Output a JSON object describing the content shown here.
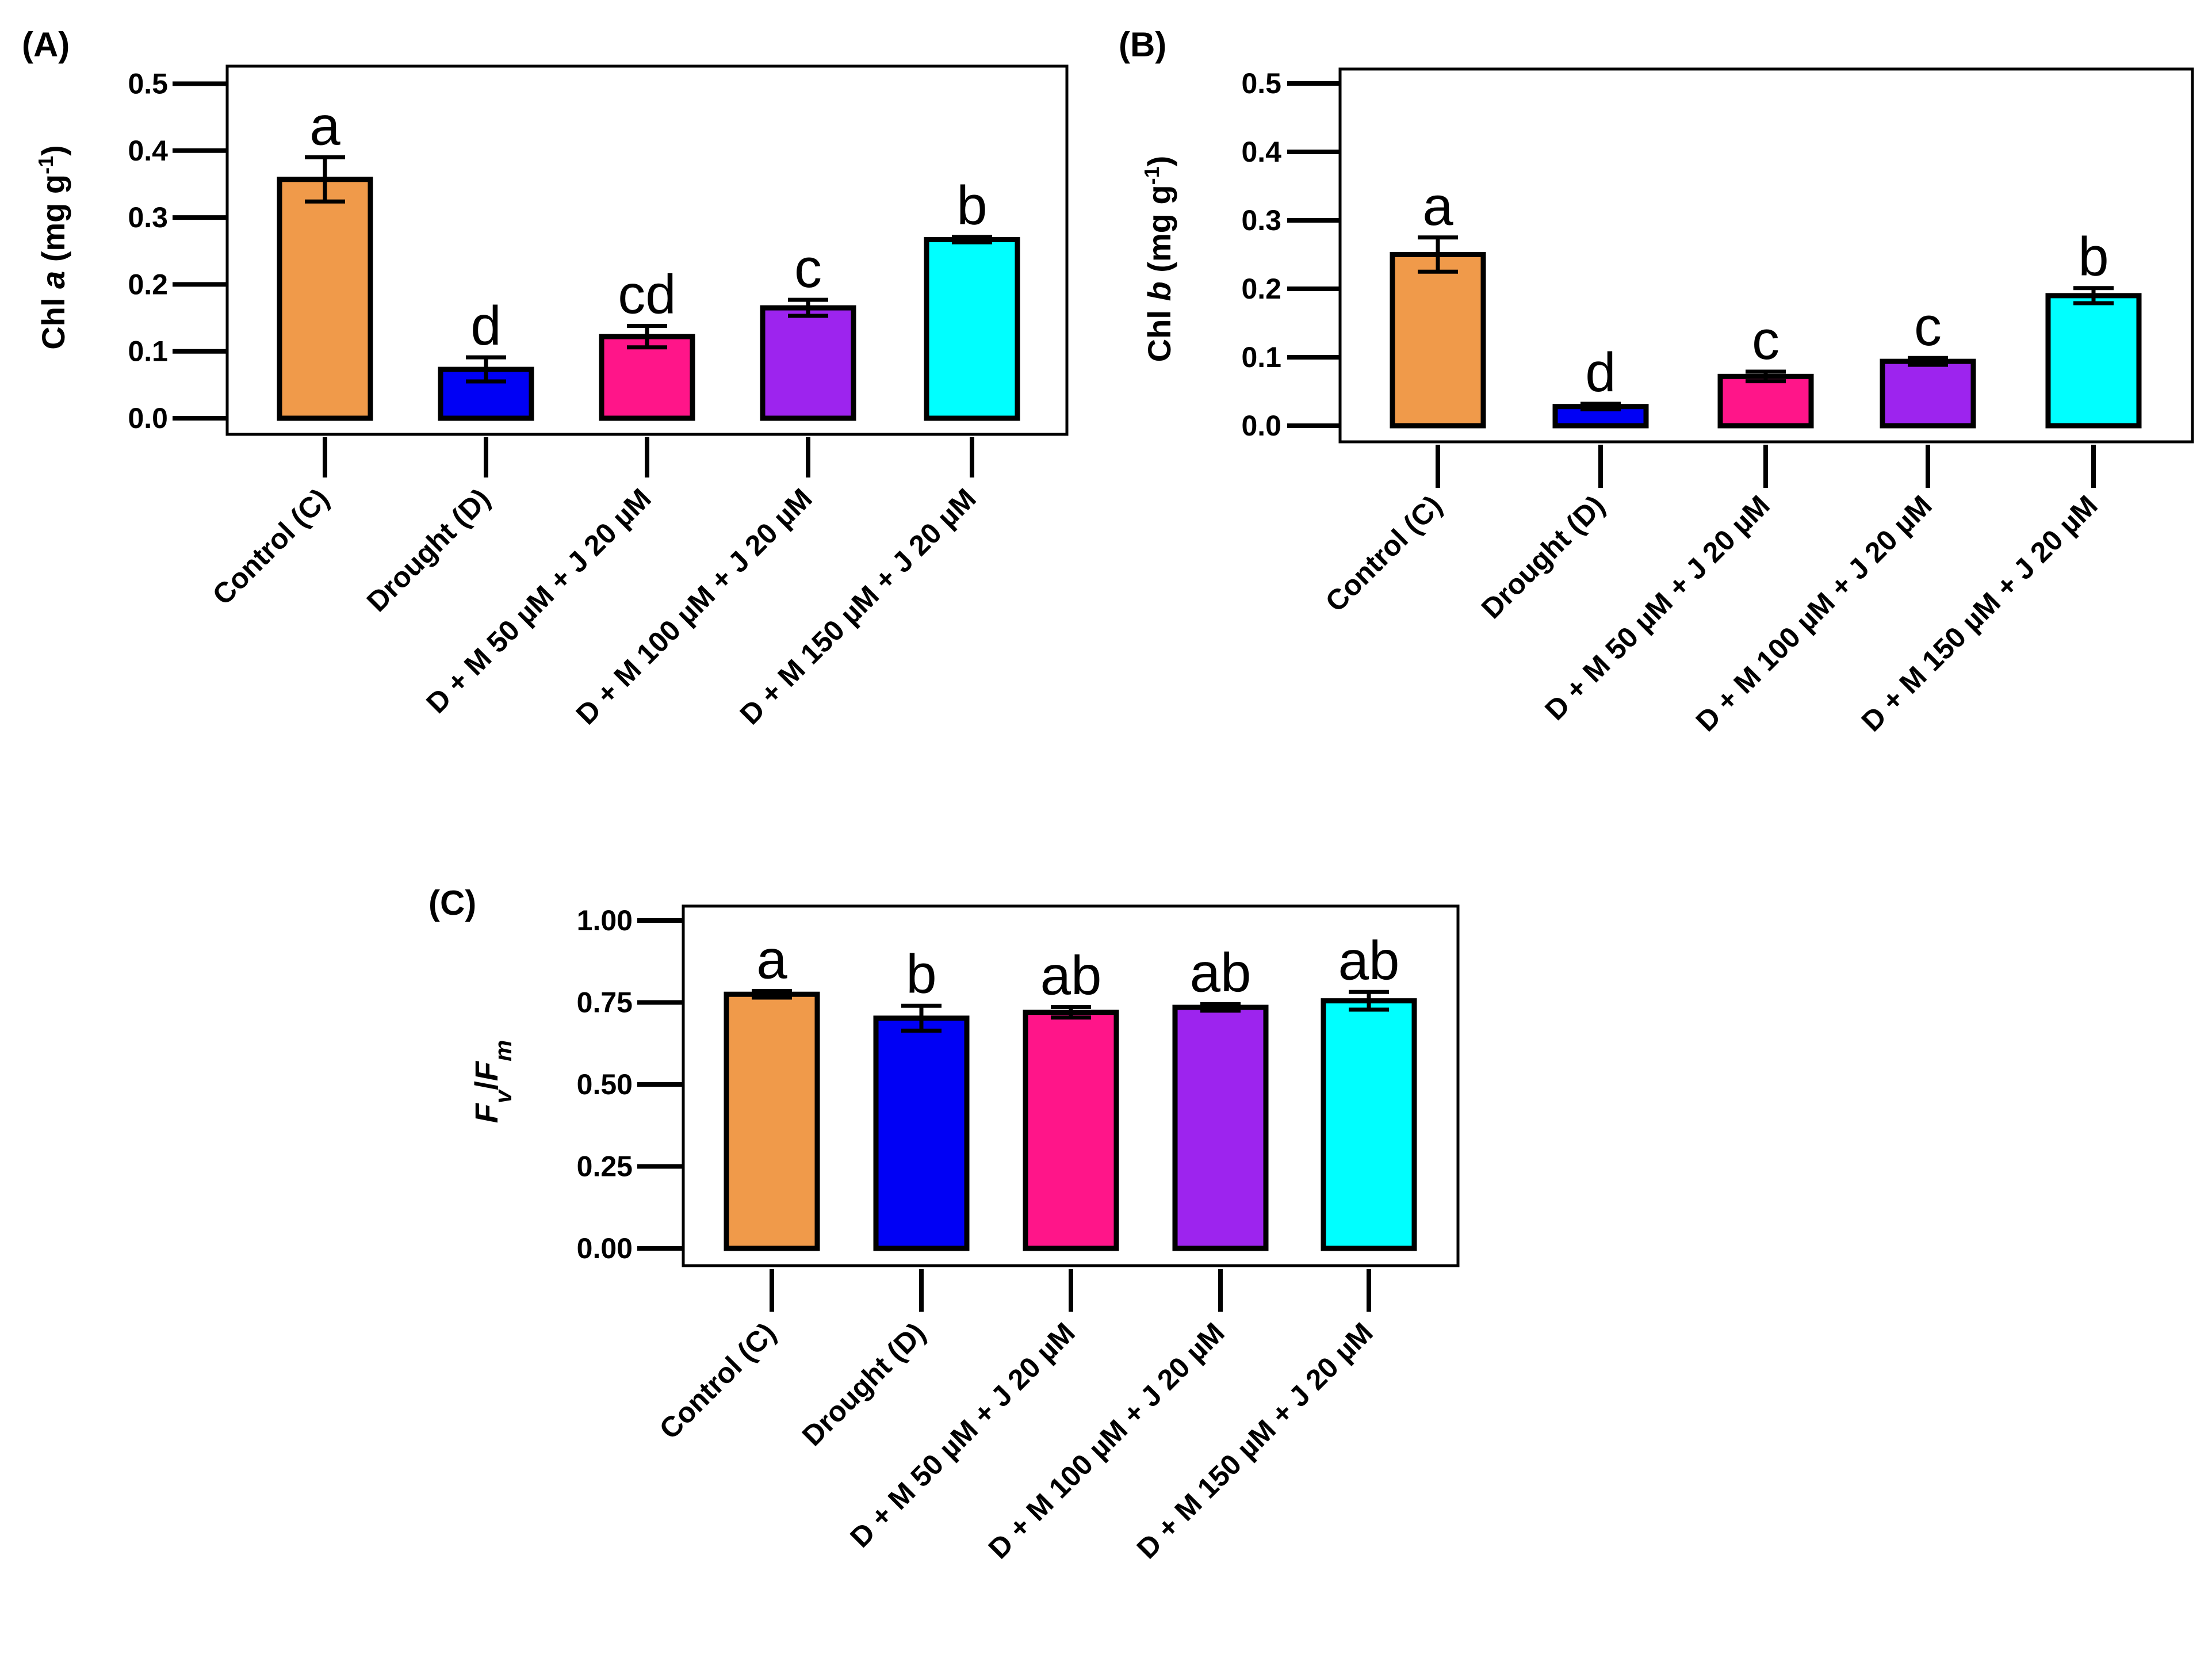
{
  "chart_data": [
    {
      "type": "bar",
      "panel": "(A)",
      "title": "",
      "xlabel": "",
      "ylabel": {
        "prefix": "Chl ",
        "italic": "a",
        "suffix": " (mg g",
        "sup": "-1",
        "close": ")"
      },
      "ylim": [
        0,
        0.55
      ],
      "yticks": [
        "0.0",
        "0.1",
        "0.2",
        "0.3",
        "0.4",
        "0.5"
      ],
      "ytick_values": [
        0,
        0.1,
        0.2,
        0.3,
        0.4,
        0.5
      ],
      "categories": [
        "Control (C)",
        "Drought (D)",
        "D + M 50 µM + J 20 µM",
        "D + M 100 µM + J 20 µM",
        "D + M 150 µM + J 20 µM"
      ],
      "values": [
        0.357,
        0.073,
        0.122,
        0.165,
        0.267
      ],
      "errors": [
        0.033,
        0.018,
        0.016,
        0.012,
        0.004
      ],
      "significance": [
        "a",
        "d",
        "cd",
        "c",
        "b"
      ],
      "colors": [
        "#F09A4A",
        "#0000F5",
        "#FF1589",
        "#9D24EE",
        "#00FFFF"
      ]
    },
    {
      "type": "bar",
      "panel": "(B)",
      "title": "",
      "xlabel": "",
      "ylabel": {
        "prefix": "Chl ",
        "italic": "b",
        "suffix": " (mg g",
        "sup": "-1",
        "close": ")"
      },
      "ylim": [
        0,
        0.53
      ],
      "yticks": [
        "0.0",
        "0.1",
        "0.2",
        "0.3",
        "0.4",
        "0.5"
      ],
      "ytick_values": [
        0,
        0.1,
        0.2,
        0.3,
        0.4,
        0.5
      ],
      "categories": [
        "Control (C)",
        "Drought (D)",
        "D + M 50 µM + J 20 µM",
        "D + M 100 µM + J 20 µM",
        "D + M 150 µM + J 20 µM"
      ],
      "values": [
        0.25,
        0.028,
        0.072,
        0.094,
        0.19
      ],
      "errors": [
        0.025,
        0.004,
        0.007,
        0.005,
        0.011
      ],
      "significance": [
        "a",
        "d",
        "c",
        "c",
        "b"
      ],
      "colors": [
        "#F09A4A",
        "#0000F5",
        "#FF1589",
        "#9D24EE",
        "#00FFFF"
      ]
    },
    {
      "type": "bar",
      "panel": "(C)",
      "title": "",
      "xlabel": "",
      "ylabel": {
        "main1": "F",
        "sub1": "v",
        "slash": "/",
        "main2": "F",
        "sub2": "m"
      },
      "ylim": [
        0,
        1.05
      ],
      "yticks": [
        "0.00",
        "0.25",
        "0.50",
        "0.75",
        "1.00"
      ],
      "ytick_values": [
        0,
        0.25,
        0.5,
        0.75,
        1.0
      ],
      "categories": [
        "Control (C)",
        "Drought (D)",
        "D + M 50 µM + J 20 µM",
        "D + M 100 µM + J 20 µM",
        "D + M 150 µM + J 20 µM"
      ],
      "values": [
        0.775,
        0.702,
        0.72,
        0.735,
        0.755
      ],
      "errors": [
        0.01,
        0.038,
        0.016,
        0.01,
        0.027
      ],
      "significance": [
        "a",
        "b",
        "ab",
        "ab",
        "ab"
      ],
      "colors": [
        "#F09A4A",
        "#0000F5",
        "#FF1589",
        "#9D24EE",
        "#00FFFF"
      ]
    }
  ]
}
